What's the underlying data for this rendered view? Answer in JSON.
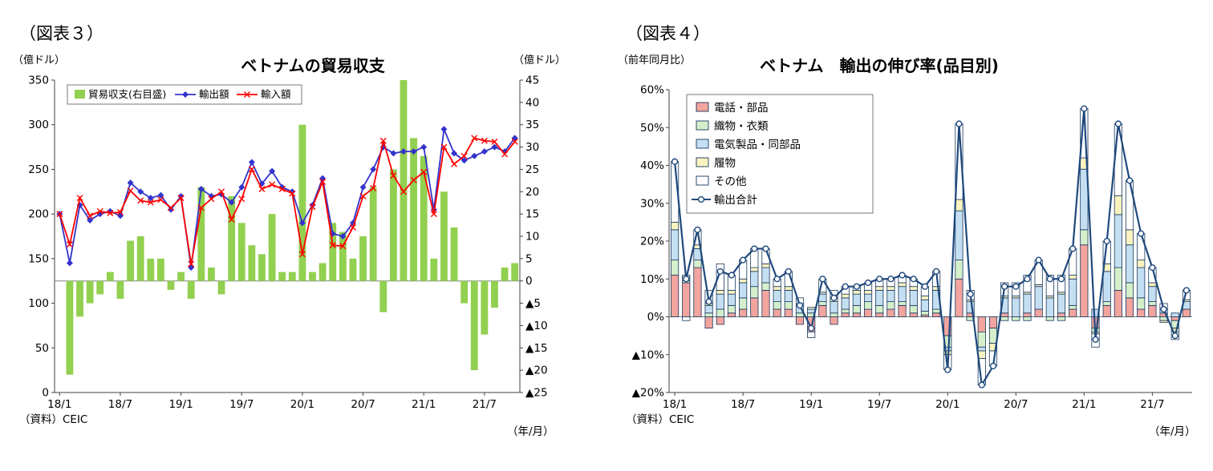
{
  "page": {
    "background": "#FFFFFF"
  },
  "chart_data": [
    {
      "figure_label": "（図表３）",
      "type": "bar-line-combo",
      "title": "ベトナムの貿易収支",
      "left_axis_unit": "（億ドル）",
      "right_axis_unit": "（億ドル）",
      "x_axis_unit": "（年/月）",
      "source": "（資料）CEIC",
      "left_axis": {
        "min": 0,
        "max": 350,
        "step": 50,
        "tick_labels": [
          "350",
          "300",
          "250",
          "200",
          "150",
          "100",
          "50",
          "0"
        ]
      },
      "right_axis": {
        "min": -25,
        "max": 45,
        "step": 5,
        "tick_labels": [
          "45",
          "40",
          "35",
          "30",
          "25",
          "20",
          "15",
          "10",
          "5",
          "0",
          "▲5",
          "▲10",
          "▲15",
          "▲20",
          "▲25"
        ]
      },
      "x_tick_labels": [
        "18/1",
        "18/7",
        "19/1",
        "19/7",
        "20/1",
        "20/7",
        "21/1",
        "21/7"
      ],
      "months": [
        "18/1",
        "18/2",
        "18/3",
        "18/4",
        "18/5",
        "18/6",
        "18/7",
        "18/8",
        "18/9",
        "18/10",
        "18/11",
        "18/12",
        "19/1",
        "19/2",
        "19/3",
        "19/4",
        "19/5",
        "19/6",
        "19/7",
        "19/8",
        "19/9",
        "19/10",
        "19/11",
        "19/12",
        "20/1",
        "20/2",
        "20/3",
        "20/4",
        "20/5",
        "20/6",
        "20/7",
        "20/8",
        "20/9",
        "20/10",
        "20/11",
        "20/12",
        "21/1",
        "21/2",
        "21/3",
        "21/4",
        "21/5",
        "21/6",
        "21/7",
        "21/8",
        "21/9",
        "21/10"
      ],
      "series": [
        {
          "name": "貿易収支(右目盛)",
          "type": "bar",
          "axis": "right",
          "color": "#92D050",
          "values": [
            0,
            -21,
            -8,
            -5,
            -3,
            2,
            -4,
            9,
            10,
            5,
            5,
            -2,
            2,
            -4,
            21,
            3,
            -3,
            19,
            13,
            8,
            6,
            15,
            2,
            2,
            35,
            2,
            4,
            13,
            11,
            5,
            10,
            21,
            -7,
            25,
            45,
            32,
            28,
            5,
            20,
            12,
            -5,
            -20,
            -12,
            -6,
            3,
            4
          ]
        },
        {
          "name": "輸出額",
          "type": "line",
          "axis": "left",
          "color": "#3333CC",
          "marker": "diamond",
          "values": [
            200,
            145,
            210,
            193,
            200,
            203,
            198,
            235,
            225,
            218,
            221,
            205,
            220,
            140,
            228,
            220,
            222,
            213,
            230,
            258,
            234,
            248,
            230,
            225,
            190,
            210,
            240,
            178,
            175,
            190,
            230,
            250,
            275,
            268,
            270,
            270,
            275,
            205,
            295,
            268,
            260,
            265,
            270,
            275,
            270,
            285
          ]
        },
        {
          "name": "輸入額",
          "type": "line",
          "axis": "left",
          "color": "#FF0000",
          "marker": "x",
          "values": [
            200,
            166,
            218,
            198,
            203,
            201,
            202,
            226,
            215,
            213,
            216,
            207,
            218,
            144,
            207,
            217,
            225,
            194,
            217,
            250,
            228,
            233,
            228,
            223,
            155,
            208,
            236,
            165,
            164,
            185,
            220,
            229,
            282,
            243,
            225,
            238,
            247,
            200,
            275,
            256,
            265,
            285,
            282,
            281,
            267,
            281
          ]
        }
      ]
    },
    {
      "figure_label": "（図表４）",
      "type": "stacked-bar-line",
      "title": "ベトナム　輸出の伸び率(品目別)",
      "y_axis_unit": "（前年同月比）",
      "x_axis_unit": "（年/月）",
      "source": "（資料）CEIC",
      "y_axis": {
        "min": -20,
        "max": 60,
        "step": 10,
        "tick_labels": [
          "60%",
          "50%",
          "40%",
          "30%",
          "20%",
          "10%",
          "0%",
          "▲10%",
          "▲20%"
        ]
      },
      "x_tick_labels": [
        "18/1",
        "18/7",
        "19/1",
        "19/7",
        "20/1",
        "20/7",
        "21/1",
        "21/7"
      ],
      "months": [
        "18/1",
        "18/2",
        "18/3",
        "18/4",
        "18/5",
        "18/6",
        "18/7",
        "18/8",
        "18/9",
        "18/10",
        "18/11",
        "18/12",
        "19/1",
        "19/2",
        "19/3",
        "19/4",
        "19/5",
        "19/6",
        "19/7",
        "19/8",
        "19/9",
        "19/10",
        "19/11",
        "19/12",
        "20/1",
        "20/2",
        "20/3",
        "20/4",
        "20/5",
        "20/6",
        "20/7",
        "20/8",
        "20/9",
        "20/10",
        "20/11",
        "20/12",
        "21/1",
        "21/2",
        "21/3",
        "21/4",
        "21/5",
        "21/6",
        "21/7",
        "21/8",
        "21/9",
        "21/10"
      ],
      "bar_outline": "#17375E",
      "bar_series": [
        {
          "name": "電話・部品",
          "color": "#F2A49E",
          "values": [
            11,
            9,
            13,
            -3,
            -2,
            1,
            2,
            5,
            7,
            2,
            2,
            -2,
            -4,
            3,
            -2,
            1,
            1,
            2,
            1,
            2,
            3,
            1,
            0.5,
            1,
            -5,
            10,
            1,
            -4,
            -3,
            1,
            0,
            1,
            2,
            0,
            1,
            2,
            19,
            -3,
            3,
            7,
            5,
            2,
            3,
            1,
            -1,
            2
          ]
        },
        {
          "name": "織物・衣類",
          "color": "#D5EFCB",
          "values": [
            4,
            0.5,
            2,
            1,
            2,
            2,
            3,
            3,
            2,
            2,
            2,
            1,
            1,
            1,
            1,
            1,
            2,
            2,
            2,
            2,
            1,
            2,
            1,
            1,
            -3,
            5,
            -1,
            -4,
            -4,
            -1,
            -1,
            -1,
            0,
            -1,
            -1,
            1,
            4,
            -1,
            1,
            6,
            4,
            3,
            1,
            -1,
            -2,
            0
          ]
        },
        {
          "name": "電気製品・同部品",
          "color": "#C5DFF2",
          "values": [
            8,
            1,
            3,
            2,
            4,
            3,
            4,
            4,
            4,
            3,
            3,
            2,
            1,
            2,
            3,
            3,
            3,
            2,
            4,
            3,
            4,
            4,
            3,
            5,
            -1,
            13,
            3,
            -1,
            0,
            4,
            5,
            5,
            6,
            5,
            5,
            7,
            16,
            2,
            8,
            14,
            10,
            8,
            4,
            1,
            1,
            2
          ]
        },
        {
          "name": "履物",
          "color": "#FAF3C0",
          "values": [
            2,
            0.5,
            1,
            0.5,
            1,
            1,
            1,
            1,
            1,
            1,
            1,
            0.5,
            0.5,
            0.5,
            1,
            1,
            1,
            1,
            1,
            1,
            1,
            1,
            1,
            1,
            -1,
            3,
            0.5,
            -2,
            -2,
            0.5,
            0.5,
            0.5,
            0.5,
            0.5,
            0.5,
            1,
            3,
            -0.5,
            2,
            5,
            4,
            2,
            1,
            -0.5,
            -1,
            0.5
          ]
        },
        {
          "name": "その他",
          "color": "#FFFFFF",
          "values": [
            16,
            -1,
            4,
            3.5,
            7,
            4,
            5,
            5,
            4,
            2,
            4,
            1.5,
            -1.5,
            3.5,
            2,
            2,
            1,
            2,
            2,
            2,
            2,
            2,
            2.5,
            4,
            -4,
            20,
            2.5,
            -7,
            -4,
            3.5,
            3.5,
            4.5,
            6.5,
            5.5,
            4.5,
            7,
            13,
            -3.5,
            6,
            19,
            13,
            7,
            4,
            1.5,
            -2,
            2.5
          ]
        }
      ],
      "line_series": {
        "name": "輸出合計",
        "color": "#1F497D",
        "marker": "circle",
        "values": [
          41,
          10,
          23,
          4,
          12,
          11,
          15,
          18,
          18,
          10,
          12,
          3,
          -3,
          10,
          5,
          8,
          8,
          9,
          10,
          10,
          11,
          10,
          8,
          12,
          -14,
          51,
          6,
          -18,
          -13,
          8,
          8,
          10,
          15,
          10,
          10,
          18,
          55,
          -6,
          20,
          51,
          36,
          22,
          13,
          2,
          -5,
          7
        ]
      }
    }
  ]
}
